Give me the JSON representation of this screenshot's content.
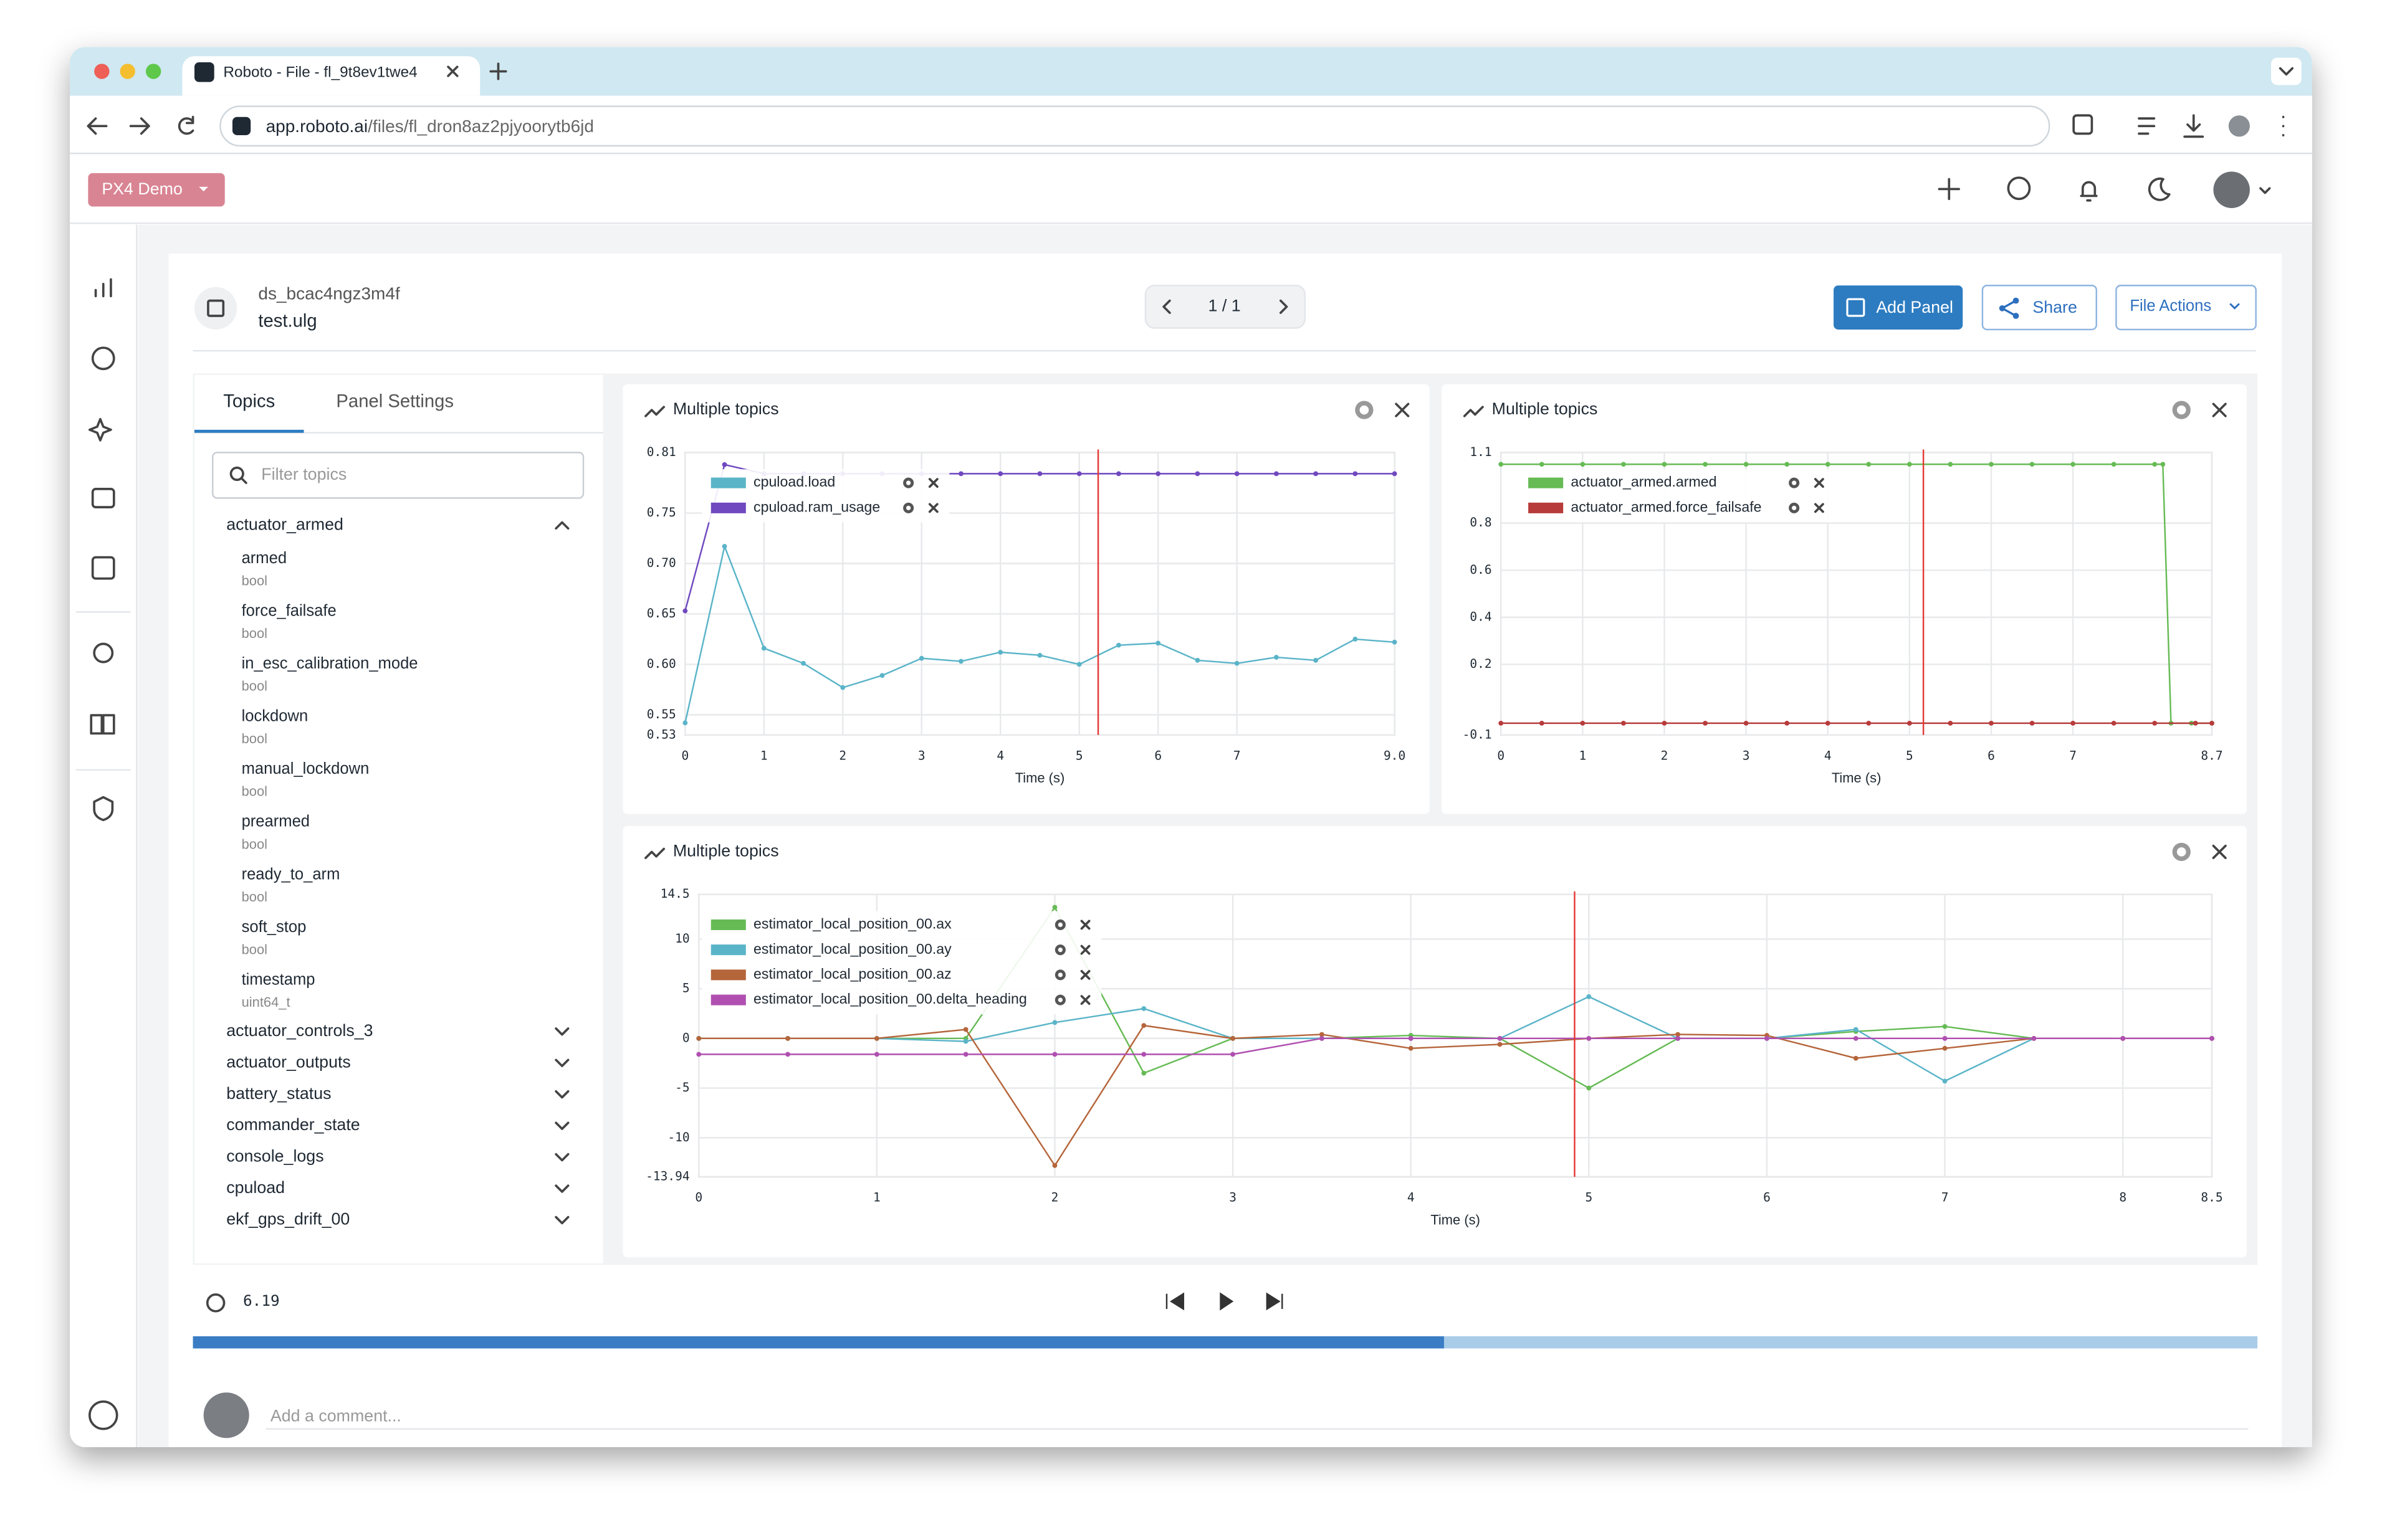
{
  "browser": {
    "tab_title": "Roboto - File - fl_9t8ev1twe4",
    "url_host": "app.roboto.ai",
    "url_path": "/files/fl_dron8az2pjyoorytb6jd"
  },
  "app": {
    "org": "PX4 Demo"
  },
  "file": {
    "dataset": "ds_bcac4ngz3m4f",
    "name": "test.ulg",
    "page": "1 / 1",
    "add_panel": "Add Panel",
    "share": "Share",
    "file_actions": "File Actions"
  },
  "sidebar": {
    "tabs": [
      "Topics",
      "Panel Settings"
    ],
    "filter_placeholder": "Filter topics",
    "topics": [
      {
        "name": "actuator_armed",
        "fields": [
          {
            "name": "armed",
            "type": "bool"
          },
          {
            "name": "force_failsafe",
            "type": "bool"
          },
          {
            "name": "in_esc_calibration_mode",
            "type": "bool"
          },
          {
            "name": "lockdown",
            "type": "bool"
          },
          {
            "name": "manual_lockdown",
            "type": "bool"
          },
          {
            "name": "prearmed",
            "type": "bool"
          },
          {
            "name": "ready_to_arm",
            "type": "bool"
          },
          {
            "name": "soft_stop",
            "type": "bool"
          },
          {
            "name": "timestamp",
            "type": "uint64_t"
          }
        ]
      },
      {
        "name": "actuator_controls_3"
      },
      {
        "name": "actuator_outputs"
      },
      {
        "name": "battery_status"
      },
      {
        "name": "commander_state"
      },
      {
        "name": "console_logs"
      },
      {
        "name": "cpuload"
      },
      {
        "name": "ekf_gps_drift_00"
      }
    ]
  },
  "chart_data": [
    {
      "type": "line",
      "title": "Multiple topics",
      "xlabel": "Time (s)",
      "xlim": [
        0,
        9
      ],
      "xticks": [
        0,
        1,
        2,
        3,
        4,
        5,
        6,
        7,
        {
          "value": 9,
          "label": "9.0"
        }
      ],
      "ylim": [
        0.53,
        0.81
      ],
      "yticks": [
        0.81,
        0.75,
        {
          "value": 0.7,
          "label": "0.70"
        },
        0.65,
        {
          "value": 0.6,
          "label": "0.60"
        },
        0.55,
        0.53
      ],
      "grid": true,
      "cursor": 5.24,
      "x": [
        0,
        0.5,
        1,
        1.5,
        2,
        2.5,
        3,
        3.5,
        4,
        4.5,
        5,
        5.5,
        6,
        6.5,
        7,
        7.5,
        8,
        8.5,
        9
      ],
      "series": [
        {
          "name": "cpuload.load",
          "color": "#5ab4c8",
          "values": [
            0.542,
            0.717,
            0.616,
            0.601,
            0.577,
            0.589,
            0.606,
            0.603,
            0.612,
            0.609,
            0.6,
            0.619,
            0.621,
            0.604,
            0.601,
            0.607,
            0.604,
            0.625,
            0.622
          ]
        },
        {
          "name": "cpuload.ram_usage",
          "color": "#7048c0",
          "values": [
            0.653,
            0.798,
            0.789,
            0.789,
            0.789,
            0.789,
            0.789,
            0.789,
            0.789,
            0.789,
            0.789,
            0.789,
            0.789,
            0.789,
            0.789,
            0.789,
            0.789,
            0.789,
            0.789
          ]
        }
      ]
    },
    {
      "type": "line",
      "title": "Multiple topics",
      "xlabel": "Time (s)",
      "xlim": [
        0,
        8.7
      ],
      "xticks": [
        0,
        1,
        2,
        3,
        4,
        5,
        6,
        7,
        8.7
      ],
      "ylim": [
        -0.1,
        1.1
      ],
      "yticks": [
        1.1,
        0.8,
        0.6,
        0.4,
        0.2,
        -0.1
      ],
      "grid": true,
      "cursor": 5.17,
      "series": [
        {
          "name": "actuator_armed.armed",
          "color": "#66bb55",
          "x": [
            0,
            0.5,
            1,
            1.5,
            2,
            2.5,
            3,
            3.5,
            4,
            4.5,
            5,
            5.5,
            6,
            6.5,
            7,
            7.5,
            8,
            8.1,
            8.2,
            8.45,
            8.7
          ],
          "values": [
            1.05,
            1.05,
            1.05,
            1.05,
            1.05,
            1.05,
            1.05,
            1.05,
            1.05,
            1.05,
            1.05,
            1.05,
            1.05,
            1.05,
            1.05,
            1.05,
            1.05,
            1.05,
            -0.05,
            -0.05,
            -0.05
          ]
        },
        {
          "name": "actuator_armed.force_failsafe",
          "color": "#b83b3b",
          "x": [
            0,
            0.5,
            1,
            1.5,
            2,
            2.5,
            3,
            3.5,
            4,
            4.5,
            5,
            5.5,
            6,
            6.5,
            7,
            7.5,
            8,
            8.5,
            8.7
          ],
          "values": [
            -0.05,
            -0.05,
            -0.05,
            -0.05,
            -0.05,
            -0.05,
            -0.05,
            -0.05,
            -0.05,
            -0.05,
            -0.05,
            -0.05,
            -0.05,
            -0.05,
            -0.05,
            -0.05,
            -0.05,
            -0.05,
            -0.05
          ]
        }
      ]
    },
    {
      "type": "line",
      "title": "Multiple topics",
      "xlabel": "Time (s)",
      "xlim": [
        0,
        8.5
      ],
      "xticks": [
        0,
        1,
        2,
        3,
        4,
        5,
        6,
        7,
        8,
        8.5
      ],
      "ylim": [
        -13.94,
        14.5
      ],
      "yticks": [
        14.5,
        10,
        5,
        0,
        -5,
        -10,
        -13.94
      ],
      "grid": true,
      "cursor": 4.92,
      "x": [
        0,
        0.5,
        1,
        1.5,
        2,
        2.5,
        3,
        3.5,
        4,
        4.5,
        5,
        5.5,
        6,
        6.5,
        7,
        7.5,
        8,
        8.5
      ],
      "series": [
        {
          "name": "estimator_local_position_00.ax",
          "color": "#66bb55",
          "values": [
            0,
            0,
            0,
            0,
            13.2,
            -3.5,
            0,
            0,
            0.3,
            0,
            -5,
            0,
            0,
            0.7,
            1.2,
            0,
            0,
            0
          ]
        },
        {
          "name": "estimator_local_position_00.ay",
          "color": "#5ab4c8",
          "values": [
            0,
            0,
            0,
            -0.3,
            1.6,
            3,
            0,
            0,
            0,
            0,
            4.2,
            0,
            0,
            0.9,
            -4.3,
            0,
            0,
            0
          ]
        },
        {
          "name": "estimator_local_position_00.az",
          "color": "#b5653a",
          "values": [
            0,
            0,
            0,
            0.9,
            -12.8,
            1.3,
            0,
            0.4,
            -1,
            -0.6,
            0,
            0.4,
            0.3,
            -2,
            -1,
            0,
            0,
            0
          ]
        },
        {
          "name": "estimator_local_position_00.delta_heading",
          "color": "#b04fb0",
          "values": [
            -1.6,
            -1.6,
            -1.6,
            -1.6,
            -1.6,
            -1.6,
            -1.6,
            0,
            0,
            0,
            0,
            0,
            0,
            0,
            0,
            0,
            0,
            0
          ]
        }
      ]
    }
  ],
  "playback": {
    "time": "6.19",
    "progress": 60.6
  },
  "comment_placeholder": "Add a comment..."
}
